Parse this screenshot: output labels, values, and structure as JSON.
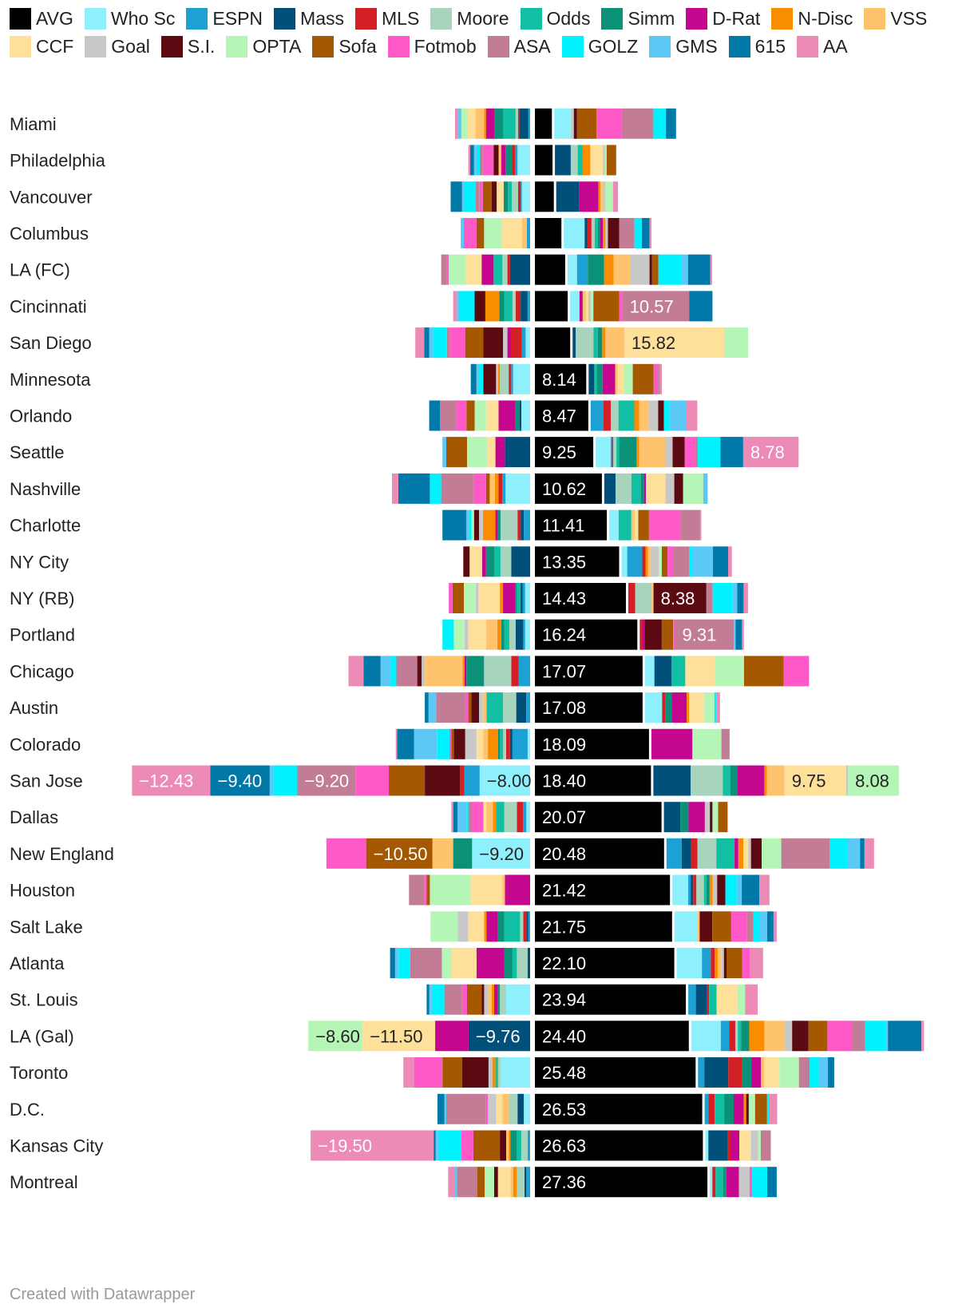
{
  "chart_data": {
    "type": "bar",
    "stacked": "diverging",
    "legend_position": "top",
    "series": [
      {
        "name": "AVG",
        "color": "#000000"
      },
      {
        "name": "Who Sc",
        "color": "#8ef0fc"
      },
      {
        "name": "ESPN",
        "color": "#1da1d4"
      },
      {
        "name": "Mass",
        "color": "#00507a"
      },
      {
        "name": "MLS",
        "color": "#d32027"
      },
      {
        "name": "Moore",
        "color": "#a8d4be"
      },
      {
        "name": "Odds",
        "color": "#11bfa3"
      },
      {
        "name": "Simm",
        "color": "#0a9178"
      },
      {
        "name": "D-Rat",
        "color": "#c5078f"
      },
      {
        "name": "N-Disc",
        "color": "#fa8c00"
      },
      {
        "name": "VSS",
        "color": "#ffc36d"
      },
      {
        "name": "CCF",
        "color": "#ffe09a"
      },
      {
        "name": "Goal",
        "color": "#c8c8c8"
      },
      {
        "name": "S.I.",
        "color": "#5c0a12"
      },
      {
        "name": "OPTA",
        "color": "#b5f5b6"
      },
      {
        "name": "Sofa",
        "color": "#a55800"
      },
      {
        "name": "Fotmob",
        "color": "#ff59c7"
      },
      {
        "name": "ASA",
        "color": "#c27c95"
      },
      {
        "name": "GOLZ",
        "color": "#00f2ff"
      },
      {
        "name": "GMS",
        "color": "#5cc8f5"
      },
      {
        "name": "615",
        "color": "#0079a8"
      },
      {
        "name": "AA",
        "color": "#eb8bb6"
      }
    ],
    "labels_shown": {
      "AVG": [
        null,
        null,
        null,
        null,
        null,
        null,
        null,
        "8.14",
        "8.47",
        "9.25",
        "10.62",
        "11.41",
        "13.35",
        "14.43",
        "16.24",
        "17.07",
        "17.08",
        "18.09",
        "18.40",
        "20.07",
        "20.48",
        "21.42",
        "21.75",
        "22.10",
        "23.94",
        "24.40",
        "25.48",
        "26.53",
        "26.63",
        "27.36"
      ]
    },
    "rows": [
      {
        "team": "Miami",
        "values": {
          "AVG": 2.7,
          "Who Sc": 2.6,
          "ESPN": -0.3,
          "Mass": -1.4,
          "MLS": -0.2,
          "Moore": -0.4,
          "Odds": -2.0,
          "Simm": -1.4,
          "D-Rat": -1.3,
          "N-Disc": -0.3,
          "VSS": -1.4,
          "CCF": -1.2,
          "Goal": 0.5,
          "S.I.": 0.5,
          "OPTA": -1.0,
          "Sofa": 3.1,
          "Fotmob": 4.0,
          "ASA": 5.0,
          "GOLZ": 2.0,
          "GMS": -0.6,
          "615": 1.6,
          "AA": -0.4
        }
      },
      {
        "team": "Philadelphia",
        "values": {
          "AVG": 2.8,
          "Who Sc": -2.0,
          "ESPN": -0.4,
          "Mass": 2.5,
          "MLS": -0.5,
          "Moore": 1.1,
          "Odds": 0.8,
          "Simm": -1.0,
          "D-Rat": -0.7,
          "N-Disc": 1.2,
          "VSS": -0.4,
          "CCF": 2.0,
          "Goal": 0.3,
          "S.I.": -0.8,
          "OPTA": 0.3,
          "Sofa": 1.5,
          "Fotmob": -1.7,
          "ASA": -0.5,
          "GOLZ": -0.5,
          "GMS": -0.4,
          "615": -0.6,
          "AA": -0.3
        }
      },
      {
        "team": "Vancouver",
        "values": {
          "AVG": 3.0,
          "Who Sc": -1.3,
          "ESPN": -0.2,
          "Mass": 3.6,
          "MLS": -0.4,
          "Moore": -1.0,
          "Odds": -0.6,
          "Simm": -0.7,
          "D-Rat": 3.1,
          "N-Disc": 0.3,
          "VSS": 0.4,
          "CCF": -1.1,
          "Goal": 0.4,
          "S.I.": -0.8,
          "OPTA": 1.2,
          "Sofa": -1.4,
          "Fotmob": -0.5,
          "ASA": -0.7,
          "GOLZ": -1.8,
          "GMS": -0.3,
          "615": -1.8,
          "AA": 0.8
        }
      },
      {
        "team": "Columbus",
        "values": {
          "AVG": 4.2,
          "Who Sc": 3.3,
          "ESPN": -0.5,
          "Mass": 0.4,
          "MLS": 0.7,
          "Moore": 0.5,
          "Odds": 0.5,
          "Simm": 0.4,
          "D-Rat": 0.4,
          "N-Disc": 0.4,
          "VSS": -0.8,
          "CCF": -3.2,
          "Goal": 0.4,
          "S.I.": 1.8,
          "OPTA": -2.8,
          "Sofa": -1.2,
          "Fotmob": -2.0,
          "ASA": 2.4,
          "GOLZ": 1.2,
          "GMS": -0.5,
          "615": 1.2,
          "AA": 0.3
        }
      },
      {
        "team": "LA (FC)",
        "values": {
          "AVG": 4.8,
          "Who Sc": 1.5,
          "ESPN": 1.7,
          "Mass": -3.2,
          "MLS": -0.4,
          "Moore": -0.8,
          "Odds": -1.4,
          "Simm": 2.6,
          "D-Rat": -1.9,
          "N-Disc": 1.5,
          "VSS": 2.6,
          "CCF": -2.5,
          "Goal": 3.1,
          "S.I.": 0.4,
          "OPTA": -2.7,
          "Sofa": 1.0,
          "Fotmob": -0.3,
          "ASA": -0.9,
          "GOLZ": 3.7,
          "GMS": 1.0,
          "615": 3.5,
          "AA": 0.3
        }
      },
      {
        "team": "Cincinnati",
        "values": {
          "AVG": 5.2,
          "Who Sc": 1.5,
          "ESPN": -0.4,
          "Mass": -1.1,
          "MLS": -0.8,
          "Moore": -0.5,
          "Odds": -1.3,
          "Simm": -0.8,
          "D-Rat": 0.5,
          "N-Disc": -2.2,
          "VSS": 0.5,
          "CCF": 0.4,
          "Goal": 0.4,
          "S.I.": -1.7,
          "OPTA": 0.4,
          "Sofa": 4.1,
          "Fotmob": 0.5,
          "ASA": 10.57,
          "GOLZ": -2.4,
          "GMS": -0.4,
          "615": 3.7,
          "AA": -0.6
        }
      },
      {
        "team": "San Diego",
        "values": {
          "AVG": 5.6,
          "Who Sc": -0.7,
          "ESPN": -0.6,
          "Mass": 0.5,
          "MLS": -1.8,
          "Moore": 2.8,
          "Odds": 0.7,
          "Simm": 0.7,
          "D-Rat": -0.5,
          "N-Disc": 0.5,
          "VSS": 3.0,
          "CCF": 15.82,
          "Goal": -0.7,
          "S.I.": -3.1,
          "OPTA": 3.8,
          "Sofa": -2.9,
          "Fotmob": -2.4,
          "ASA": -0.5,
          "GOLZ": -2.2,
          "GMS": -0.6,
          "615": -0.8,
          "AA": -1.4
        }
      },
      {
        "team": "Minnesota",
        "values": {
          "AVG": 8.14,
          "Who Sc": -2.7,
          "ESPN": -0.3,
          "Mass": 0.9,
          "MLS": -0.4,
          "Moore": -1.4,
          "Odds": 0.4,
          "Simm": 0.9,
          "D-Rat": 2.0,
          "N-Disc": -0.3,
          "VSS": 0.4,
          "CCF": 1.0,
          "Goal": -0.3,
          "S.I.": -2.0,
          "OPTA": 1.4,
          "Sofa": 3.3,
          "Fotmob": 0.7,
          "ASA": 0.3,
          "GOLZ": -0.7,
          "GMS": -0.4,
          "615": -0.9,
          "AA": 0.3
        }
      },
      {
        "team": "Orlando",
        "values": {
          "AVG": 8.47,
          "Who Sc": -1.4,
          "ESPN": 2.0,
          "Mass": -0.3,
          "MLS": 1.2,
          "Moore": 1.2,
          "Odds": 2.5,
          "Simm": -0.6,
          "D-Rat": -2.7,
          "N-Disc": 0.8,
          "VSS": 1.5,
          "CCF": -2.0,
          "Goal": 1.5,
          "S.I.": 0.9,
          "OPTA": -1.8,
          "Sofa": -1.3,
          "Fotmob": -1.6,
          "ASA": -2.6,
          "GOLZ": 0.9,
          "GMS": 2.7,
          "615": -1.7,
          "AA": 1.7
        }
      },
      {
        "team": "Seattle",
        "values": {
          "AVG": 9.25,
          "Who Sc": 2.4,
          "ESPN": 0.2,
          "Mass": -4.0,
          "MLS": 0.2,
          "Moore": 0.5,
          "Odds": 0.4,
          "Simm": 2.8,
          "D-Rat": -1.5,
          "N-Disc": 0.4,
          "VSS": 4.1,
          "CCF": -1.3,
          "Goal": 1.2,
          "S.I.": 1.9,
          "OPTA": -3.2,
          "Sofa": -3.3,
          "Fotmob": 1.7,
          "ASA": 0.4,
          "GOLZ": 3.6,
          "GMS": -0.6,
          "615": 3.6,
          "AA": 8.78
        }
      },
      {
        "team": "Nashville",
        "values": {
          "AVG": 10.62,
          "Who Sc": -3.9,
          "ESPN": -0.5,
          "Mass": 1.8,
          "MLS": -0.6,
          "Moore": 2.5,
          "Odds": 1.5,
          "Simm": 0.5,
          "D-Rat": 0.3,
          "N-Disc": -0.6,
          "VSS": -0.8,
          "CCF": 3.1,
          "Goal": 1.4,
          "S.I.": 1.4,
          "OPTA": 3.2,
          "Sofa": -0.6,
          "Fotmob": -2.0,
          "ASA": -5.1,
          "GOLZ": -1.8,
          "GMS": 0.7,
          "615": -5.0,
          "AA": -1.0
        }
      },
      {
        "team": "Charlotte",
        "values": {
          "AVG": 11.41,
          "Who Sc": 1.5,
          "ESPN": -1.0,
          "Mass": -0.5,
          "MLS": -0.5,
          "Moore": -2.7,
          "Odds": 2.0,
          "Simm": -0.4,
          "D-Rat": -0.4,
          "N-Disc": -2.0,
          "VSS": 0.5,
          "CCF": 0.6,
          "Goal": -0.6,
          "S.I.": -0.8,
          "OPTA": -0.4,
          "Sofa": 1.7,
          "Fotmob": 5.0,
          "ASA": 3.1,
          "GOLZ": -0.4,
          "GMS": -0.4,
          "615": -3.8,
          "AA": 0.2
        }
      },
      {
        "team": "NY City",
        "values": {
          "AVG": 13.35,
          "Who Sc": 0.9,
          "ESPN": 2.4,
          "Mass": -3.0,
          "MLS": 0.5,
          "Moore": -1.7,
          "Odds": -1.0,
          "Simm": -1.3,
          "D-Rat": -0.6,
          "N-Disc": 0.4,
          "VSS": 0.4,
          "CCF": -2.0,
          "Goal": 1.3,
          "S.I.": -1.0,
          "OPTA": 0.5,
          "Sofa": 0.9,
          "Fotmob": 1.0,
          "ASA": 2.4,
          "GOLZ": 0.5,
          "GMS": 3.3,
          "615": 2.4,
          "AA": 0.6
        }
      },
      {
        "team": "NY (RB)",
        "values": {
          "AVG": 14.43,
          "Who Sc": -0.8,
          "ESPN": -0.4,
          "Mass": -0.3,
          "MLS": 1.1,
          "Moore": 2.6,
          "Odds": -0.6,
          "Simm": -0.3,
          "D-Rat": -1.9,
          "N-Disc": -0.5,
          "VSS": 0.3,
          "CCF": -3.4,
          "Goal": -0.4,
          "S.I.": 8.38,
          "OPTA": -1.9,
          "Sofa": -1.8,
          "Fotmob": -0.6,
          "ASA": 1.0,
          "GOLZ": 3.1,
          "GMS": 0.8,
          "615": 1.0,
          "AA": 0.7
        }
      },
      {
        "team": "Portland",
        "values": {
          "AVG": 16.24,
          "Who Sc": -0.8,
          "ESPN": -0.3,
          "Mass": -1.2,
          "MLS": 0.4,
          "Moore": -1.0,
          "Odds": -0.8,
          "Simm": -0.5,
          "D-Rat": 0.4,
          "N-Disc": -0.6,
          "VSS": -1.8,
          "CCF": -2.8,
          "Goal": -0.6,
          "S.I.": 2.7,
          "OPTA": -1.7,
          "Sofa": 1.8,
          "Fotmob": 0.3,
          "ASA": 9.31,
          "GOLZ": -1.8,
          "GMS": 0.3,
          "615": 1.0,
          "AA": 0.3
        }
      },
      {
        "team": "Chicago",
        "values": {
          "AVG": 17.07,
          "Who Sc": 1.5,
          "ESPN": -1.8,
          "Mass": 2.7,
          "MLS": -1.2,
          "Moore": -4.3,
          "Odds": 2.2,
          "Simm": -2.8,
          "D-Rat": -0.3,
          "N-Disc": -0.3,
          "VSS": -6.0,
          "CCF": 4.7,
          "Goal": -0.5,
          "S.I.": -0.7,
          "OPTA": 4.6,
          "Sofa": 6.3,
          "Fotmob": 4.0,
          "ASA": -3.3,
          "GOLZ": -1.0,
          "GMS": -1.5,
          "615": -2.7,
          "AA": -2.4
        }
      },
      {
        "team": "Austin",
        "values": {
          "AVG": 17.08,
          "Who Sc": 2.7,
          "ESPN": -0.6,
          "Mass": -1.6,
          "MLS": 0.5,
          "Moore": -2.1,
          "Odds": -2.6,
          "Simm": 1.0,
          "D-Rat": 2.4,
          "N-Disc": 0.4,
          "VSS": -0.6,
          "CCF": 2.4,
          "Goal": -0.6,
          "S.I.": -1.2,
          "OPTA": 1.6,
          "Sofa": -0.5,
          "Fotmob": -0.5,
          "ASA": -4.6,
          "GOLZ": 0.3,
          "GMS": -1.2,
          "615": -0.6,
          "AA": 0.6
        }
      },
      {
        "team": "Colorado",
        "values": {
          "AVG": 18.09,
          "Who Sc": -0.4,
          "ESPN": -2.4,
          "Mass": -0.4,
          "MLS": -0.6,
          "Moore": -0.5,
          "Odds": -0.5,
          "Simm": -0.3,
          "D-Rat": 6.5,
          "N-Disc": -1.6,
          "VSS": -0.7,
          "CCF": -1.1,
          "Goal": -1.8,
          "S.I.": -1.8,
          "OPTA": 4.6,
          "Sofa": -0.4,
          "Fotmob": -0.3,
          "ASA": 1.3,
          "GOLZ": -1.9,
          "GMS": -3.7,
          "615": -2.7,
          "AA": -0.2
        }
      },
      {
        "team": "San Jose",
        "values": {
          "AVG": 18.4,
          "Who Sc": -8.0,
          "ESPN": -2.4,
          "Mass": 5.9,
          "MLS": -0.7,
          "Moore": 5.1,
          "Odds": 1.2,
          "Simm": 1.1,
          "D-Rat": 4.3,
          "N-Disc": 0.4,
          "VSS": 2.8,
          "CCF": 9.75,
          "Goal": 0.3,
          "S.I.": -5.6,
          "OPTA": 8.08,
          "Sofa": -5.7,
          "Fotmob": -5.3,
          "ASA": -9.2,
          "GOLZ": -3.8,
          "GMS": -0.6,
          "615": -9.4,
          "AA": -12.43
        }
      },
      {
        "team": "Dallas",
        "values": {
          "AVG": 20.07,
          "Who Sc": -0.6,
          "ESPN": -0.5,
          "Mass": 2.6,
          "MLS": -1.0,
          "Moore": -2.0,
          "Odds": -1.3,
          "Simm": 1.3,
          "D-Rat": 2.6,
          "N-Disc": -0.5,
          "VSS": -1.1,
          "CCF": -0.4,
          "Goal": 0.8,
          "S.I.": 0.4,
          "OPTA": 0.9,
          "Sofa": 1.5,
          "Fotmob": -1.9,
          "ASA": -0.5,
          "GOLZ": -0.3,
          "GMS": -1.4,
          "615": -0.7,
          "AA": -0.3
        }
      },
      {
        "team": "New England",
        "values": {
          "AVG": 20.48,
          "Who Sc": -9.2,
          "ESPN": 2.4,
          "Mass": 1.5,
          "MLS": 1.0,
          "Moore": 3.0,
          "Odds": 2.9,
          "Simm": -3.0,
          "D-Rat": 0.6,
          "N-Disc": 0.8,
          "VSS": -3.3,
          "CCF": 0.8,
          "Goal": 0.4,
          "S.I.": 1.7,
          "OPTA": 3.1,
          "Sofa": -10.5,
          "Fotmob": -6.3,
          "ASA": 7.7,
          "GOLZ": 2.8,
          "GMS": 2.0,
          "615": 0.7,
          "AA": 1.5
        }
      },
      {
        "team": "Houston",
        "values": {
          "AVG": 21.42,
          "Who Sc": 2.5,
          "ESPN": 0.4,
          "Mass": 0.4,
          "MLS": 0.5,
          "Moore": 1.2,
          "Odds": 0.4,
          "Simm": 0.5,
          "D-Rat": -4.0,
          "N-Disc": 0.5,
          "VSS": -0.4,
          "CCF": -5.0,
          "Goal": 0.7,
          "S.I.": 1.3,
          "OPTA": -6.5,
          "Sofa": -0.5,
          "Fotmob": -0.4,
          "ASA": -2.4,
          "GOLZ": 1.8,
          "GMS": 0.8,
          "615": 2.8,
          "AA": 1.6
        }
      },
      {
        "team": "Salt Lake",
        "values": {
          "AVG": 21.75,
          "Who Sc": 3.6,
          "ESPN": -0.3,
          "Mass": -0.3,
          "MLS": -0.5,
          "Moore": -0.5,
          "Odds": -2.5,
          "Simm": -1.0,
          "D-Rat": -1.8,
          "N-Disc": -0.4,
          "VSS": 0.4,
          "CCF": -2.5,
          "Goal": -1.7,
          "S.I.": 2.0,
          "OPTA": -4.3,
          "Sofa": 3.0,
          "Fotmob": 2.5,
          "ASA": 1.0,
          "GOLZ": 1.0,
          "GMS": 1.2,
          "615": 1.0,
          "AA": 0.5
        }
      },
      {
        "team": "Atlanta",
        "values": {
          "AVG": 22.1,
          "Who Sc": 4.0,
          "ESPN": 1.4,
          "Mass": -0.4,
          "MLS": 0.6,
          "Moore": -1.7,
          "Odds": -0.7,
          "Simm": -1.3,
          "D-Rat": -4.4,
          "N-Disc": 0.5,
          "VSS": 0.6,
          "CCF": -3.9,
          "Goal": 0.4,
          "S.I.": 0.4,
          "OPTA": -1.6,
          "Sofa": 2.5,
          "Fotmob": 1.2,
          "ASA": -5.0,
          "GOLZ": -1.8,
          "GMS": -0.6,
          "615": -0.8,
          "AA": 2.1
        }
      },
      {
        "team": "St. Louis",
        "values": {
          "AVG": 23.94,
          "Who Sc": -3.8,
          "ESPN": 1.2,
          "Mass": 1.7,
          "MLS": 0.4,
          "Moore": -1.0,
          "Odds": 1.2,
          "Simm": -0.4,
          "D-Rat": -0.5,
          "N-Disc": -0.4,
          "VSS": -0.6,
          "CCF": 3.3,
          "Goal": -0.6,
          "S.I.": -0.4,
          "OPTA": 1.2,
          "Sofa": -2.3,
          "Fotmob": -0.8,
          "ASA": -2.8,
          "GOLZ": -2.0,
          "GMS": -0.4,
          "615": -0.4,
          "AA": 2.0
        }
      },
      {
        "team": "LA (Gal)",
        "values": {
          "AVG": 24.4,
          "Who Sc": 4.7,
          "ESPN": 1.3,
          "Mass": -9.76,
          "MLS": 1.0,
          "Moore": 0.4,
          "Odds": 0.5,
          "Simm": 1.3,
          "D-Rat": -5.3,
          "N-Disc": 2.4,
          "VSS": 3.2,
          "CCF": -11.5,
          "Goal": 1.2,
          "S.I.": 2.6,
          "OPTA": -8.6,
          "Sofa": 3.0,
          "Fotmob": 4.0,
          "ASA": 2.0,
          "GOLZ": 3.3,
          "GMS": 0.3,
          "615": 5.3,
          "AA": 0.4
        }
      },
      {
        "team": "Toronto",
        "values": {
          "AVG": 25.48,
          "Who Sc": -4.7,
          "ESPN": 1.0,
          "Mass": 3.8,
          "MLS": 2.2,
          "Moore": -0.4,
          "Odds": -0.4,
          "Simm": 1.5,
          "D-Rat": 1.5,
          "N-Disc": -0.5,
          "VSS": 0.5,
          "CCF": 2.4,
          "Goal": -0.6,
          "S.I.": -4.2,
          "OPTA": 3.1,
          "Sofa": -3.1,
          "Fotmob": -4.5,
          "ASA": 1.7,
          "GOLZ": 1.5,
          "GMS": 1.4,
          "615": 1.0,
          "AA": -1.7
        }
      },
      {
        "team": "D.C.",
        "values": {
          "AVG": 26.53,
          "Who Sc": -1.0,
          "ESPN": 0.6,
          "Mass": -1.0,
          "MLS": 1.0,
          "Moore": -1.4,
          "Odds": 1.5,
          "Simm": 1.5,
          "D-Rat": 1.6,
          "N-Disc": 0.4,
          "VSS": -1.0,
          "CCF": -1.0,
          "Goal": -1.3,
          "S.I.": 0.4,
          "OPTA": 1.0,
          "Sofa": 1.9,
          "Fotmob": -0.3,
          "ASA": -6.3,
          "GOLZ": 0.4,
          "GMS": -0.3,
          "615": -1.1,
          "AA": 1.2
        }
      },
      {
        "team": "Kansas City",
        "values": {
          "AVG": 26.63,
          "Who Sc": 0.5,
          "ESPN": -0.4,
          "Mass": 3.0,
          "MLS": 0.5,
          "Moore": -1.0,
          "Odds": -0.7,
          "Simm": -1.0,
          "D-Rat": 1.4,
          "N-Disc": -0.3,
          "VSS": -0.4,
          "CCF": 1.8,
          "Goal": 1.2,
          "S.I.": -1.0,
          "OPTA": 0.4,
          "Sofa": -4.2,
          "Fotmob": -1.9,
          "ASA": 1.6,
          "GOLZ": -3.7,
          "GMS": -0.4,
          "615": -0.3,
          "AA": -19.5
        }
      },
      {
        "team": "Montreal",
        "values": {
          "AVG": 27.36,
          "Who Sc": 0.4,
          "ESPN": -0.6,
          "Mass": -0.3,
          "MLS": 0.5,
          "Moore": -1.2,
          "Odds": 1.2,
          "Simm": 0.5,
          "D-Rat": 2.0,
          "N-Disc": -0.6,
          "VSS": -0.4,
          "CCF": -2.0,
          "Goal": 1.7,
          "S.I.": -0.6,
          "OPTA": -1.5,
          "Sofa": -1.2,
          "Fotmob": 0.4,
          "ASA": -3.2,
          "GOLZ": 2.4,
          "GMS": -0.3,
          "615": 1.5,
          "AA": -1.1
        }
      }
    ]
  },
  "footer": {
    "credit": "Created with Datawrapper"
  }
}
